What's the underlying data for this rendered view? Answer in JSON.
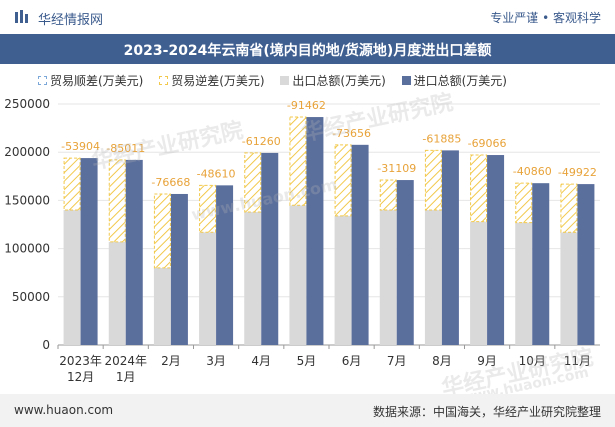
{
  "header": {
    "brand": "华经情报网",
    "tagline": "专业严谨 • 客观科学"
  },
  "legend": {
    "surplus": "贸易顺差(万美元)",
    "deficit": "贸易逆差(万美元)",
    "export": "出口总额(万美元)",
    "import": "进口总额(万美元)"
  },
  "footer": {
    "website": "www.huaon.com",
    "source": "数据来源：中国海关，华经产业研究院整理"
  },
  "watermark": {
    "cn": "华经产业研究院",
    "url": "www.huaon.com"
  },
  "chart_data": {
    "type": "bar",
    "title": "2023-2024年云南省(境内目的地/货源地)月度进出口差额",
    "categories": [
      "2023年\n12月",
      "2024年\n1月",
      "2月",
      "3月",
      "4月",
      "5月",
      "6月",
      "7月",
      "8月",
      "9月",
      "10月",
      "11月"
    ],
    "ylim": [
      0,
      250000
    ],
    "yticks": [
      0,
      50000,
      100000,
      150000,
      200000,
      250000
    ],
    "series": [
      {
        "name": "出口总额(万美元)",
        "values": [
          140000,
          107000,
          80000,
          117000,
          138000,
          145000,
          134000,
          140000,
          140000,
          128000,
          127000,
          117000
        ]
      },
      {
        "name": "进口总额(万美元)",
        "values": [
          193904,
          192011,
          156668,
          165610,
          199260,
          236462,
          207656,
          171109,
          201885,
          197066,
          167860,
          166922
        ]
      },
      {
        "name": "贸易逆差(万美元)",
        "values": [
          -53904,
          -85011,
          -76668,
          -48610,
          -61260,
          -91462,
          -73656,
          -31109,
          -61885,
          -69066,
          -40860,
          -49922
        ]
      }
    ],
    "colors": {
      "export": "#d9d9d9",
      "import": "#5b6f9d",
      "deficit_stroke": "#f2c94c",
      "label": "#e8a33a",
      "axis_text": "#333333",
      "grid": "#e6e6e6"
    }
  }
}
